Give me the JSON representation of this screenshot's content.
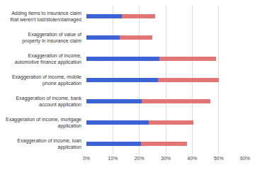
{
  "chart_data": {
    "type": "bar",
    "orientation": "horizontal",
    "stacked": true,
    "grid": true,
    "categories": [
      "Adding items to insurance claim that weren't lost/stolen/damaged",
      "Exaggeration of value of property in insurance claim",
      "Exaggeration of income, automotive finance application",
      "Exaggeration of income, mobile phone application",
      "Exaggeration of income, bank account application",
      "Exaggeration of income, mortgage application",
      "Exaggeration of income, loan application"
    ],
    "series": [
      {
        "color": "#3b63d6",
        "values": [
          13.5,
          12.5,
          27.5,
          27,
          21,
          23.5,
          20.5
        ]
      },
      {
        "color": "#e27676",
        "values": [
          12.5,
          12.5,
          21.5,
          23,
          26,
          17,
          17.5
        ]
      }
    ],
    "xlim": [
      0,
      60
    ],
    "xticks": [
      {
        "value": 0,
        "label": "0%"
      },
      {
        "value": 10,
        "label": "10%"
      },
      {
        "value": 20,
        "label": "20%"
      },
      {
        "value": 30,
        "label": "30%"
      },
      {
        "value": 40,
        "label": "40%"
      },
      {
        "value": 50,
        "label": "50%"
      },
      {
        "value": 60,
        "label": "60%"
      }
    ]
  }
}
